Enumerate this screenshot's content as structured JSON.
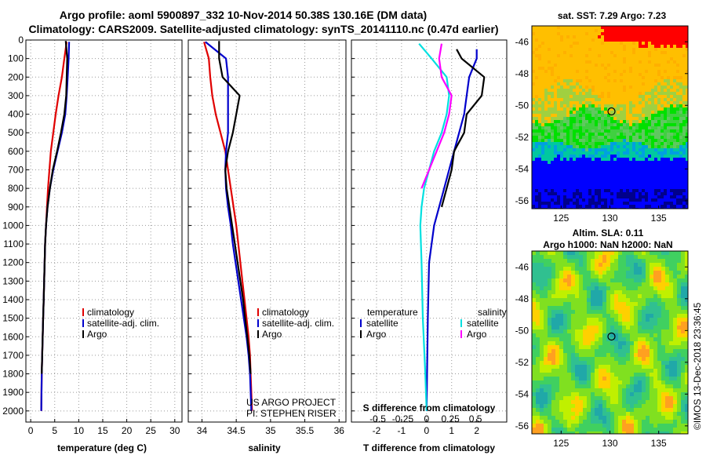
{
  "header": {
    "line1": "Argo profile: aoml 5900897_332 10-Nov-2014 50.38S 130.16E (DM data)",
    "line2": "Climatology: CARS2009. Satellite-adjusted climatology: synTS_20141110.nc (0.47d earlier)"
  },
  "colors": {
    "climatology": "#e00000",
    "satellite": "#0000cc",
    "argo": "#000000",
    "salinity_satellite": "#00e0e0",
    "salinity_argo": "#ff00ff",
    "grid": "#9a9a9a"
  },
  "chart_data": [
    {
      "type": "line",
      "ylabel": "",
      "xlabel": "temperature (deg C)",
      "xlim": [
        -1,
        31.5
      ],
      "ylim": [
        2060,
        0
      ],
      "xticks": [
        0,
        5,
        10,
        15,
        20,
        25,
        30
      ],
      "yticks": [
        0,
        100,
        200,
        300,
        400,
        500,
        600,
        700,
        800,
        900,
        1000,
        1100,
        1200,
        1300,
        1400,
        1500,
        1600,
        1700,
        1800,
        1900,
        2000
      ],
      "grid": true,
      "legend_position": "lower-center",
      "series": [
        {
          "name": "climatology",
          "x": [
            7.5,
            7.0,
            6.5,
            5.8,
            5.2,
            4.7,
            4.2,
            3.9,
            3.6,
            3.4,
            3.2,
            3.0,
            2.9,
            2.8,
            2.7,
            2.6,
            2.5,
            2.4,
            2.3,
            2.2
          ],
          "y": [
            10,
            100,
            200,
            300,
            400,
            500,
            600,
            700,
            800,
            900,
            1000,
            1100,
            1200,
            1300,
            1400,
            1500,
            1600,
            1700,
            1800,
            2000
          ]
        },
        {
          "name": "satellite-adj. clim.",
          "x": [
            8.0,
            7.9,
            7.7,
            7.5,
            7.2,
            6.5,
            5.6,
            4.7,
            4.0,
            3.5,
            3.2,
            3.0,
            2.9,
            2.8,
            2.7,
            2.6,
            2.5,
            2.4,
            2.3,
            2.2
          ],
          "y": [
            10,
            100,
            200,
            300,
            400,
            500,
            600,
            700,
            800,
            900,
            1000,
            1100,
            1200,
            1300,
            1400,
            1500,
            1600,
            1700,
            1800,
            2000
          ]
        },
        {
          "name": "Argo",
          "x": [
            7.3,
            7.6,
            7.5,
            7.4,
            7.0,
            6.3,
            5.5,
            4.6,
            4.0,
            3.5,
            3.2,
            3.0,
            2.9,
            2.8,
            2.7,
            2.6,
            2.5,
            2.4,
            2.3
          ],
          "y": [
            5,
            100,
            200,
            300,
            400,
            500,
            600,
            700,
            800,
            900,
            1000,
            1100,
            1200,
            1300,
            1400,
            1500,
            1600,
            1700,
            1800
          ]
        }
      ],
      "legend": [
        "climatology",
        "satellite-adj. clim.",
        "Argo"
      ]
    },
    {
      "type": "line",
      "xlabel": "salinity",
      "xlim": [
        33.8,
        36.1
      ],
      "ylim": [
        2060,
        0
      ],
      "xticks": [
        34,
        34.5,
        35,
        35.5,
        36
      ],
      "grid": true,
      "legend_position": "lower-right",
      "series": [
        {
          "name": "climatology",
          "x": [
            34.03,
            34.1,
            34.12,
            34.15,
            34.2,
            34.27,
            34.34,
            34.38,
            34.42,
            34.46,
            34.5,
            34.53,
            34.56,
            34.59,
            34.62,
            34.65,
            34.68,
            34.7,
            34.71,
            34.73
          ],
          "y": [
            10,
            100,
            200,
            300,
            400,
            500,
            600,
            700,
            800,
            900,
            1000,
            1100,
            1200,
            1300,
            1400,
            1500,
            1600,
            1700,
            1800,
            2000
          ]
        },
        {
          "name": "satellite-adj. clim.",
          "x": [
            34.05,
            34.35,
            34.38,
            34.38,
            34.38,
            34.38,
            34.35,
            34.34,
            34.35,
            34.38,
            34.42,
            34.45,
            34.49,
            34.53,
            34.57,
            34.61,
            34.65,
            34.68,
            34.7,
            34.72
          ],
          "y": [
            10,
            100,
            200,
            300,
            400,
            500,
            600,
            700,
            800,
            900,
            1000,
            1100,
            1200,
            1300,
            1400,
            1500,
            1600,
            1700,
            1800,
            2000
          ]
        },
        {
          "name": "Argo",
          "x": [
            34.25,
            34.25,
            34.3,
            34.55,
            34.5,
            34.45,
            34.38,
            34.34,
            34.36,
            34.4,
            34.44,
            34.48,
            34.52,
            34.56,
            34.6,
            34.63,
            34.66,
            34.69,
            34.71
          ],
          "y": [
            5,
            100,
            200,
            300,
            400,
            500,
            600,
            700,
            800,
            900,
            1000,
            1100,
            1200,
            1300,
            1400,
            1500,
            1600,
            1700,
            1800
          ]
        }
      ],
      "legend": [
        "climatology",
        "satellite-adj. clim.",
        "Argo"
      ],
      "annotations": [
        "US ARGO PROJECT",
        "PI: STEPHEN RISER"
      ]
    },
    {
      "type": "line",
      "xlabel": "T difference from climatology",
      "xlim": [
        -3,
        3.2
      ],
      "ylim": [
        2060,
        0
      ],
      "xticks": [
        -2,
        -1,
        0,
        1,
        2
      ],
      "secondary_xlabel": "S difference from climatology",
      "secondary_xticks": [
        "-0.5",
        "-0.25",
        "0",
        "0.25",
        "0.5"
      ],
      "grid": true,
      "series": [
        {
          "name": "temperature satellite",
          "x": [
            2.0,
            2.0,
            1.7,
            1.6,
            1.5,
            1.3,
            1.1,
            0.9,
            0.7,
            0.5,
            0.3,
            0.1,
            0.05,
            0.02,
            0.0
          ],
          "y": [
            50,
            100,
            200,
            300,
            400,
            500,
            600,
            700,
            800,
            900,
            1000,
            1200,
            1500,
            1800,
            2000
          ]
        },
        {
          "name": "temperature Argo",
          "x": [
            1.2,
            1.4,
            2.3,
            2.2,
            1.6,
            1.5,
            1.1,
            1.0,
            0.8,
            0.6
          ],
          "y": [
            50,
            100,
            200,
            300,
            400,
            500,
            600,
            700,
            800,
            900
          ]
        },
        {
          "name": "salinity satellite",
          "x": [
            -0.3,
            0.2,
            0.8,
            0.9,
            0.8,
            0.6,
            0.3,
            0.1,
            -0.1,
            -0.2,
            -0.25,
            -0.2,
            -0.15,
            -0.05,
            0.0
          ],
          "y": [
            20,
            100,
            200,
            300,
            400,
            500,
            600,
            700,
            800,
            900,
            1000,
            1200,
            1500,
            1800,
            2000
          ]
        },
        {
          "name": "salinity Argo",
          "x": [
            0.6,
            0.5,
            0.6,
            1.0,
            0.9,
            0.7,
            0.4,
            0.1,
            -0.2
          ],
          "y": [
            20,
            100,
            200,
            300,
            400,
            500,
            600,
            700,
            800
          ]
        }
      ],
      "legend_headers": [
        "temperature",
        "salinity"
      ],
      "legend": [
        "satellite",
        "Argo",
        "satellite",
        "Argo"
      ]
    },
    {
      "type": "heatmap",
      "title": "sat. SST: 7.29 Argo: 7.23",
      "xticks": [
        125,
        130,
        135
      ],
      "yticks": [
        -46,
        -48,
        -50,
        -52,
        -54,
        -56
      ],
      "xlim": [
        122,
        138
      ],
      "ylim": [
        -56.5,
        -45
      ]
    },
    {
      "type": "heatmap",
      "title": "Altim. SLA: 0.11",
      "subtitle": "Argo h1000: NaN h2000: NaN",
      "xticks": [
        125,
        130,
        135
      ],
      "yticks": [
        -46,
        -48,
        -50,
        -52,
        -54,
        -56
      ],
      "xlim": [
        122,
        138
      ],
      "ylim": [
        -56.5,
        -45
      ]
    }
  ],
  "maps": {
    "float_lon": 130.16,
    "float_lat": -50.38
  },
  "side_label": "©IMOS 13-Dec-2018 23:36:45"
}
